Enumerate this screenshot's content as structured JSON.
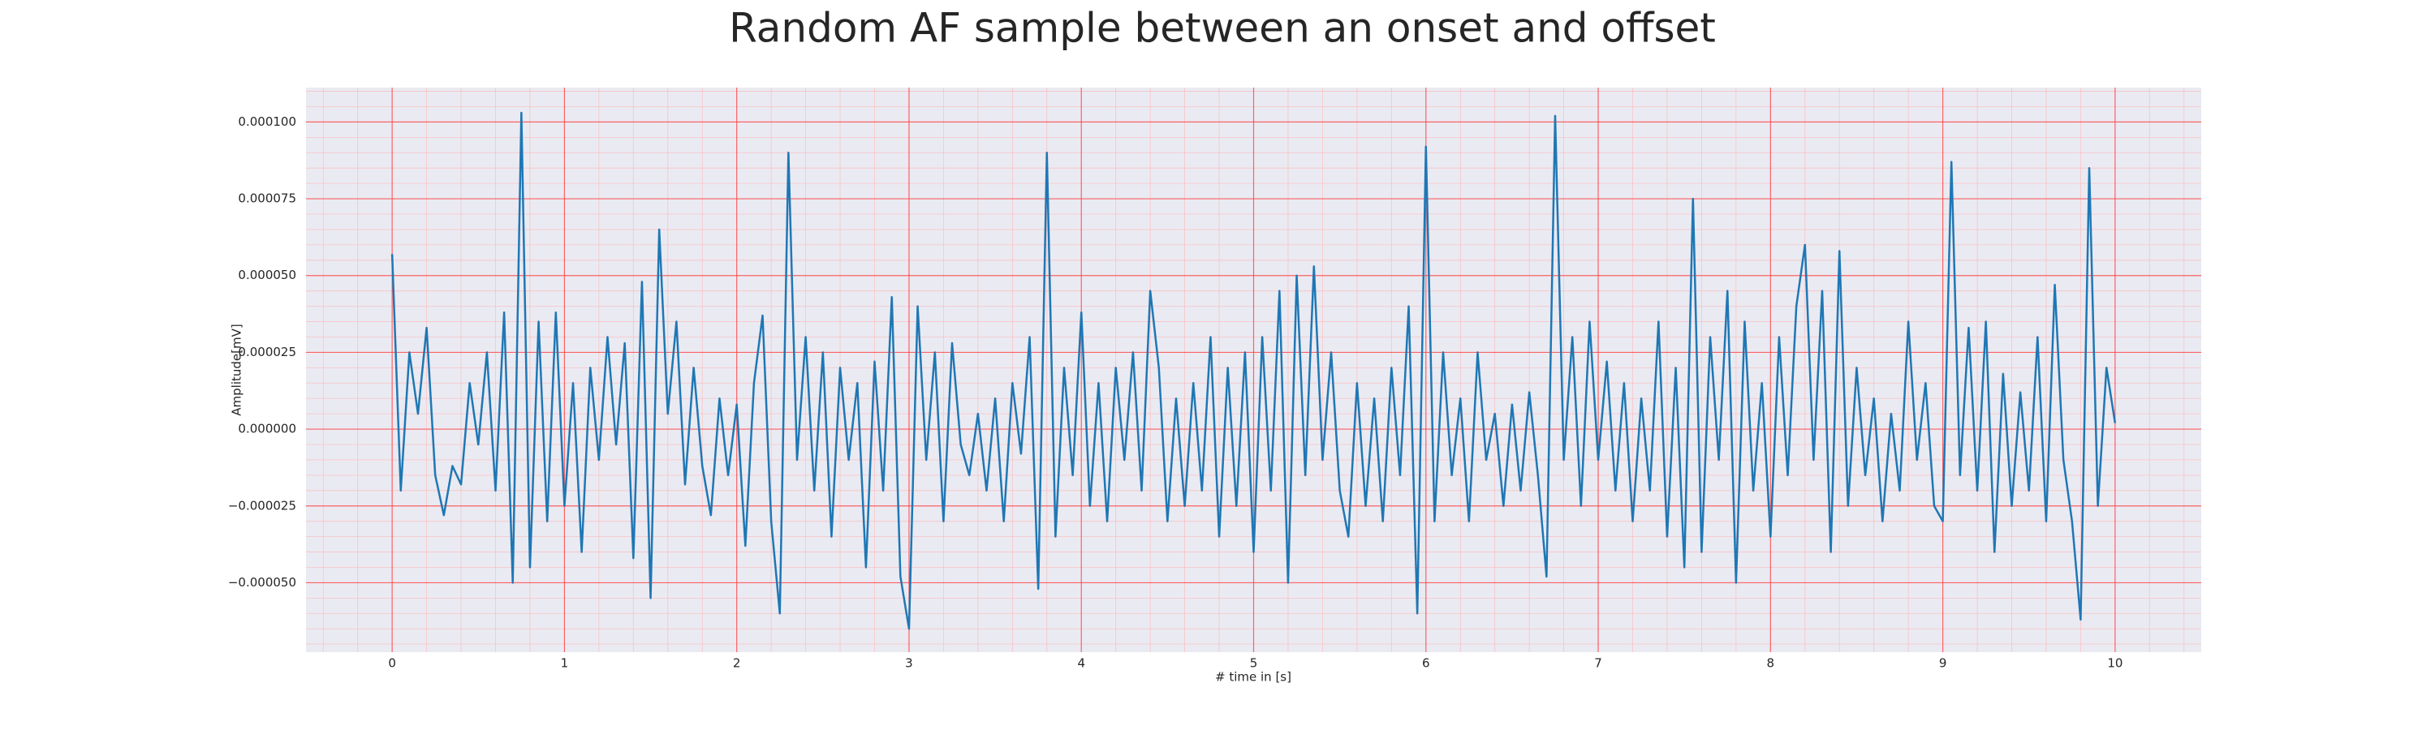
{
  "chart_data": {
    "type": "line",
    "title": "Random AF sample between an onset and offset",
    "xlabel": "# time in [s]",
    "ylabel": "Amplitude[mV]",
    "color": "#1f77b4",
    "grid": true,
    "minor_grid": true,
    "xlim": [
      -0.5,
      10.5
    ],
    "ylim": [
      -7.26e-05,
      0.0001112
    ],
    "xticks": [
      0,
      1,
      2,
      3,
      4,
      5,
      6,
      7,
      8,
      9,
      10
    ],
    "yticks": [
      {
        "value": -5e-05,
        "label": "−0.000050"
      },
      {
        "value": -2.5e-05,
        "label": "−0.000025"
      },
      {
        "value": 0,
        "label": "0.000000"
      },
      {
        "value": 2.5e-05,
        "label": "0.000025"
      },
      {
        "value": 5e-05,
        "label": "0.000050"
      },
      {
        "value": 7.5e-05,
        "label": "0.000075"
      },
      {
        "value": 0.0001,
        "label": "0.000100"
      }
    ],
    "x": [
      0,
      0.05,
      0.1,
      0.15,
      0.2,
      0.25,
      0.3,
      0.35,
      0.4,
      0.45,
      0.5,
      0.55,
      0.6,
      0.65,
      0.7,
      0.75,
      0.8,
      0.85,
      0.9,
      0.95,
      1,
      1.05,
      1.1,
      1.15,
      1.2,
      1.25,
      1.3,
      1.35,
      1.4,
      1.45,
      1.5,
      1.55,
      1.6,
      1.65,
      1.7,
      1.75,
      1.8,
      1.85,
      1.9,
      1.95,
      2,
      2.05,
      2.1,
      2.15,
      2.2,
      2.25,
      2.3,
      2.35,
      2.4,
      2.45,
      2.5,
      2.55,
      2.6,
      2.65,
      2.7,
      2.75,
      2.8,
      2.85,
      2.9,
      2.95,
      3,
      3.05,
      3.1,
      3.15,
      3.2,
      3.25,
      3.3,
      3.35,
      3.4,
      3.45,
      3.5,
      3.55,
      3.6,
      3.65,
      3.7,
      3.75,
      3.8,
      3.85,
      3.9,
      3.95,
      4,
      4.05,
      4.1,
      4.15,
      4.2,
      4.25,
      4.3,
      4.35,
      4.4,
      4.45,
      4.5,
      4.55,
      4.6,
      4.65,
      4.7,
      4.75,
      4.8,
      4.85,
      4.9,
      4.95,
      5,
      5.05,
      5.1,
      5.15,
      5.2,
      5.25,
      5.3,
      5.35,
      5.4,
      5.45,
      5.5,
      5.55,
      5.6,
      5.65,
      5.7,
      5.75,
      5.8,
      5.85,
      5.9,
      5.95,
      6,
      6.05,
      6.1,
      6.15,
      6.2,
      6.25,
      6.3,
      6.35,
      6.4,
      6.45,
      6.5,
      6.55,
      6.6,
      6.65,
      6.7,
      6.75,
      6.8,
      6.85,
      6.9,
      6.95,
      7,
      7.05,
      7.1,
      7.15,
      7.2,
      7.25,
      7.3,
      7.35,
      7.4,
      7.45,
      7.5,
      7.55,
      7.6,
      7.65,
      7.7,
      7.75,
      7.8,
      7.85,
      7.9,
      7.95,
      8,
      8.05,
      8.1,
      8.15,
      8.2,
      8.25,
      8.3,
      8.35,
      8.4,
      8.45,
      8.5,
      8.55,
      8.6,
      8.65,
      8.7,
      8.75,
      8.8,
      8.85,
      8.9,
      8.95,
      9,
      9.05,
      9.1,
      9.15,
      9.2,
      9.25,
      9.3,
      9.35,
      9.4,
      9.45,
      9.5,
      9.55,
      9.6,
      9.65,
      9.7,
      9.75,
      9.8,
      9.85,
      9.9,
      9.95,
      10
    ],
    "values": [
      5.7e-05,
      -2e-05,
      2.5e-05,
      5e-06,
      3.3e-05,
      -1.5e-05,
      -2.8e-05,
      -1.2e-05,
      -1.8e-05,
      1.5e-05,
      -5e-06,
      2.5e-05,
      -2e-05,
      3.8e-05,
      -5e-05,
      0.000103,
      -4.5e-05,
      3.5e-05,
      -3e-05,
      3.8e-05,
      -2.5e-05,
      1.5e-05,
      -4e-05,
      2e-05,
      -1e-05,
      3e-05,
      -5e-06,
      2.8e-05,
      -4.2e-05,
      4.8e-05,
      -5.5e-05,
      6.5e-05,
      5e-06,
      3.5e-05,
      -1.8e-05,
      2e-05,
      -1.2e-05,
      -2.8e-05,
      1e-05,
      -1.5e-05,
      8e-06,
      -3.8e-05,
      1.5e-05,
      3.7e-05,
      -3e-05,
      -6e-05,
      9e-05,
      -1e-05,
      3e-05,
      -2e-05,
      2.5e-05,
      -3.5e-05,
      2e-05,
      -1e-05,
      1.5e-05,
      -4.5e-05,
      2.2e-05,
      -2e-05,
      4.3e-05,
      -4.8e-05,
      -6.5e-05,
      4e-05,
      -1e-05,
      2.5e-05,
      -3e-05,
      2.8e-05,
      -5e-06,
      -1.5e-05,
      5e-06,
      -2e-05,
      1e-05,
      -3e-05,
      1.5e-05,
      -8e-06,
      3e-05,
      -5.2e-05,
      9e-05,
      -3.5e-05,
      2e-05,
      -1.5e-05,
      3.8e-05,
      -2.5e-05,
      1.5e-05,
      -3e-05,
      2e-05,
      -1e-05,
      2.5e-05,
      -2e-05,
      4.5e-05,
      2e-05,
      -3e-05,
      1e-05,
      -2.5e-05,
      1.5e-05,
      -2e-05,
      3e-05,
      -3.5e-05,
      2e-05,
      -2.5e-05,
      2.5e-05,
      -4e-05,
      3e-05,
      -2e-05,
      4.5e-05,
      -5e-05,
      5e-05,
      -1.5e-05,
      5.3e-05,
      -1e-05,
      2.5e-05,
      -2e-05,
      -3.5e-05,
      1.5e-05,
      -2.5e-05,
      1e-05,
      -3e-05,
      2e-05,
      -1.5e-05,
      4e-05,
      -6e-05,
      9.2e-05,
      -3e-05,
      2.5e-05,
      -1.5e-05,
      1e-05,
      -3e-05,
      2.5e-05,
      -1e-05,
      5e-06,
      -2.5e-05,
      8e-06,
      -2e-05,
      1.2e-05,
      -1.5e-05,
      -4.8e-05,
      0.000102,
      -1e-05,
      3e-05,
      -2.5e-05,
      3.5e-05,
      -1e-05,
      2.2e-05,
      -2e-05,
      1.5e-05,
      -3e-05,
      1e-05,
      -2e-05,
      3.5e-05,
      -3.5e-05,
      2e-05,
      -4.5e-05,
      7.5e-05,
      -4e-05,
      3e-05,
      -1e-05,
      4.5e-05,
      -5e-05,
      3.5e-05,
      -2e-05,
      1.5e-05,
      -3.5e-05,
      3e-05,
      -1.5e-05,
      4e-05,
      6e-05,
      -1e-05,
      4.5e-05,
      -4e-05,
      5.8e-05,
      -2.5e-05,
      2e-05,
      -1.5e-05,
      1e-05,
      -3e-05,
      5e-06,
      -2e-05,
      3.5e-05,
      -1e-05,
      1.5e-05,
      -2.5e-05,
      -3e-05,
      8.7e-05,
      -1.5e-05,
      3.3e-05,
      -2e-05,
      3.5e-05,
      -4e-05,
      1.8e-05,
      -2.5e-05,
      1.2e-05,
      -2e-05,
      3e-05,
      -3e-05,
      4.7e-05,
      -1e-05,
      -3e-05,
      -6.2e-05,
      8.5e-05,
      -2.5e-05,
      2e-05,
      2e-06
    ]
  }
}
